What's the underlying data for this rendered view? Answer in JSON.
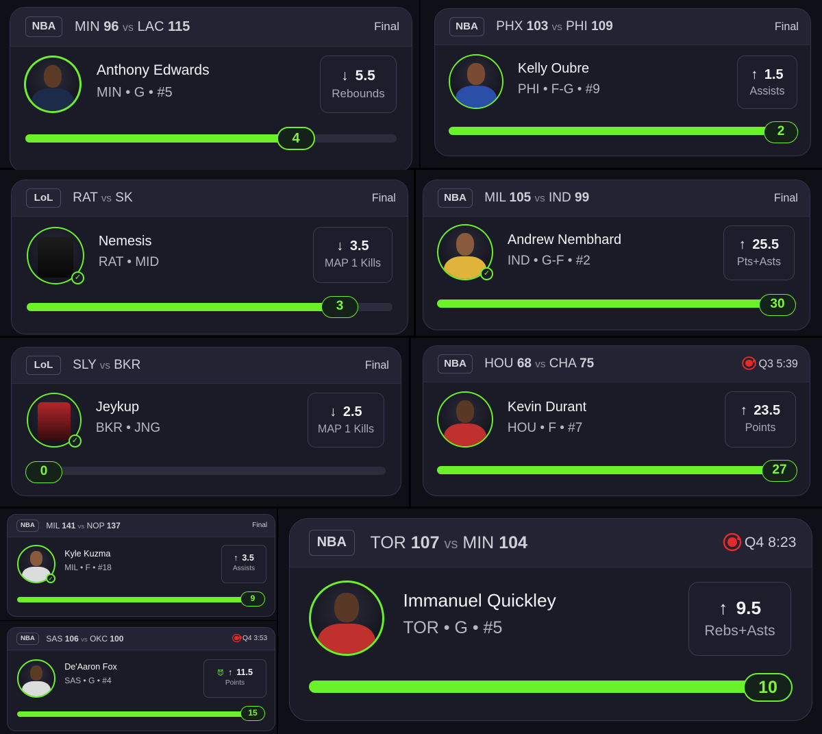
{
  "cards": [
    {
      "league": "NBA",
      "team1": "MIN",
      "score1": "96",
      "vs": "vs",
      "team2": "LAC",
      "score2": "115",
      "status": "Final",
      "live": false,
      "player": "Anthony Edwards",
      "info": "MIN • G • #5",
      "direction": "down",
      "line": "5.5",
      "stat": "Rebounds",
      "result": "4",
      "progress": 0.72,
      "avatar_icon": "player-photo-icon"
    },
    {
      "league": "NBA",
      "team1": "PHX",
      "score1": "103",
      "vs": "vs",
      "team2": "PHI",
      "score2": "109",
      "status": "Final",
      "live": false,
      "player": "Kelly Oubre",
      "info": "PHI • F-G • #9",
      "direction": "up",
      "line": "1.5",
      "stat": "Assists",
      "result": "2",
      "progress": 1.0,
      "avatar_icon": "player-photo-icon"
    },
    {
      "league": "LoL",
      "team1": "RAT",
      "score1": "",
      "vs": "vs",
      "team2": "SK",
      "score2": "",
      "status": "Final",
      "live": false,
      "player": "Nemesis",
      "info": "RAT • MID",
      "direction": "down",
      "line": "3.5",
      "stat": "MAP 1 Kills",
      "result": "3",
      "progress": 0.86,
      "avatar_icon": "jersey-icon"
    },
    {
      "league": "NBA",
      "team1": "MIL",
      "score1": "105",
      "vs": "vs",
      "team2": "IND",
      "score2": "99",
      "status": "Final",
      "live": false,
      "player": "Andrew Nembhard",
      "info": "IND • G-F • #2",
      "direction": "up",
      "line": "25.5",
      "stat": "Pts+Asts",
      "result": "30",
      "progress": 1.0,
      "avatar_icon": "player-photo-icon"
    },
    {
      "league": "LoL",
      "team1": "SLY",
      "score1": "",
      "vs": "vs",
      "team2": "BKR",
      "score2": "",
      "status": "Final",
      "live": false,
      "player": "Jeykup",
      "info": "BKR • JNG",
      "direction": "down",
      "line": "2.5",
      "stat": "MAP 1 Kills",
      "result": "0",
      "progress": 0.0,
      "avatar_icon": "jersey-icon"
    },
    {
      "league": "NBA",
      "team1": "HOU",
      "score1": "68",
      "vs": "vs",
      "team2": "CHA",
      "score2": "75",
      "status": "Q3 5:39",
      "live": true,
      "player": "Kevin Durant",
      "info": "HOU • F • #7",
      "direction": "up",
      "line": "23.5",
      "stat": "Points",
      "result": "27",
      "progress": 1.0,
      "avatar_icon": "player-photo-icon"
    },
    {
      "league": "NBA",
      "team1": "MIL",
      "score1": "141",
      "vs": "vs",
      "team2": "NOP",
      "score2": "137",
      "status": "Final",
      "live": false,
      "player": "Kyle Kuzma",
      "info": "MIL • F • #18",
      "direction": "up",
      "line": "3.5",
      "stat": "Assists",
      "result": "9",
      "progress": 1.0,
      "avatar_icon": "player-photo-icon"
    },
    {
      "league": "NBA",
      "team1": "SAS",
      "score1": "106",
      "vs": "vs",
      "team2": "OKC",
      "score2": "100",
      "status": "Q4 3:53",
      "live": true,
      "player": "De'Aaron Fox",
      "info": "SAS • G • #4",
      "direction": "up",
      "line": "11.5",
      "stat": "Points",
      "result": "15",
      "progress": 1.0,
      "avatar_icon": "player-photo-icon",
      "demon_icon": "demon-icon"
    },
    {
      "league": "NBA",
      "team1": "TOR",
      "score1": "107",
      "vs": "vs",
      "team2": "MIN",
      "score2": "104",
      "status": "Q4 8:23",
      "live": true,
      "player": "Immanuel Quickley",
      "info": "TOR • G • #5",
      "direction": "up",
      "line": "9.5",
      "stat": "Rebs+Asts",
      "result": "10",
      "progress": 1.0,
      "avatar_icon": "player-photo-icon"
    }
  ],
  "colors": {
    "accent": "#6cf02a",
    "live": "#e52a2a",
    "card": "#1b1b28",
    "header": "#232333"
  }
}
